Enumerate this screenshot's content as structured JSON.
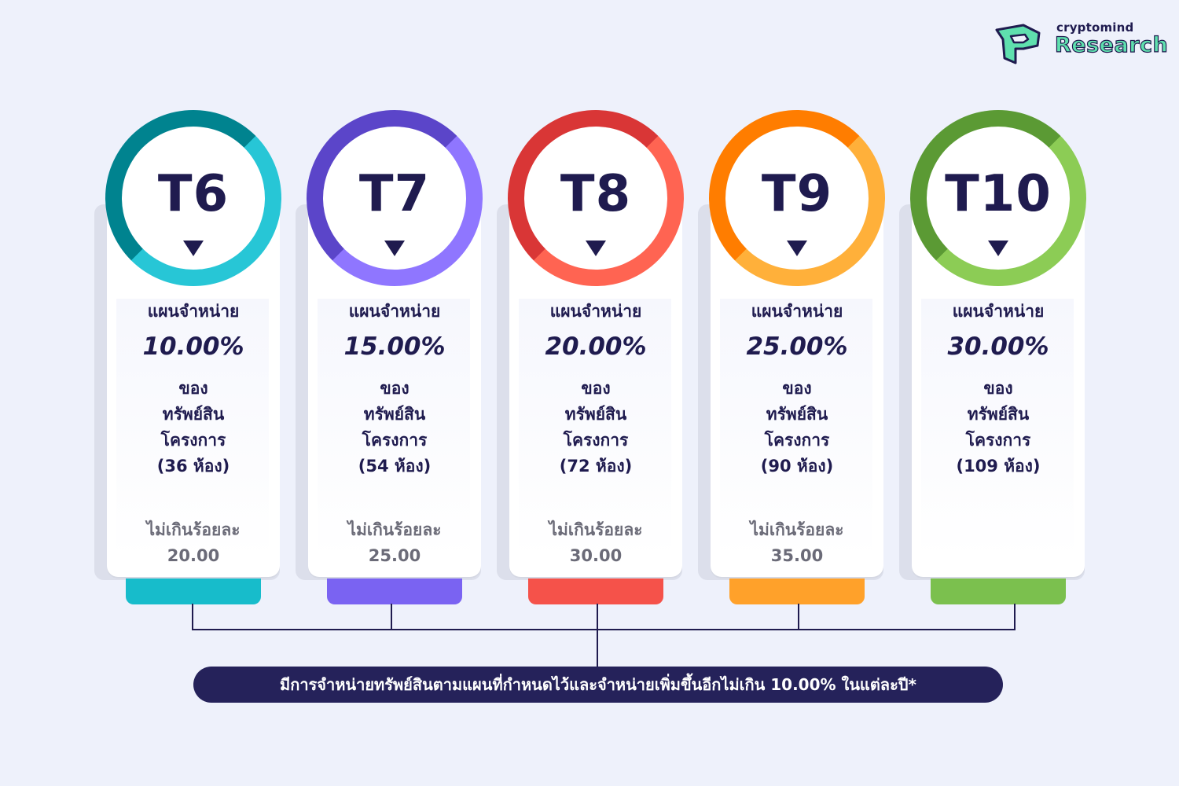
{
  "brand": {
    "small": "cryptomind",
    "big": "Research",
    "icon": "cryptomind-logo-icon"
  },
  "tiers": [
    {
      "tier": "T6",
      "plan_label": "แผนจำหน่าย",
      "percent": "10.00%",
      "line1": "ของ",
      "line2": "ทรัพย์สิน",
      "line3": "โครงการ",
      "rooms": "(36 ห้อง)",
      "limit_label": "ไม่เกินร้อยละ",
      "limit_value": "20.00",
      "color_a": "#00838f",
      "color_b": "#27c6d6",
      "tab": "#17bccb"
    },
    {
      "tier": "T7",
      "plan_label": "แผนจำหน่าย",
      "percent": "15.00%",
      "line1": "ของ",
      "line2": "ทรัพย์สิน",
      "line3": "โครงการ",
      "rooms": "(54 ห้อง)",
      "limit_label": "ไม่เกินร้อยละ",
      "limit_value": "25.00",
      "color_a": "#5b45c9",
      "color_b": "#8f76ff",
      "tab": "#7a63f2"
    },
    {
      "tier": "T8",
      "plan_label": "แผนจำหน่าย",
      "percent": "20.00%",
      "line1": "ของ",
      "line2": "ทรัพย์สิน",
      "line3": "โครงการ",
      "rooms": "(72 ห้อง)",
      "limit_label": "ไม่เกินร้อยละ",
      "limit_value": "30.00",
      "color_a": "#d93636",
      "color_b": "#ff6452",
      "tab": "#f5524a"
    },
    {
      "tier": "T9",
      "plan_label": "แผนจำหน่าย",
      "percent": "25.00%",
      "line1": "ของ",
      "line2": "ทรัพย์สิน",
      "line3": "โครงการ",
      "rooms": "(90 ห้อง)",
      "limit_label": "ไม่เกินร้อยละ",
      "limit_value": "35.00",
      "color_a": "#ff7d00",
      "color_b": "#ffb03a",
      "tab": "#ffa12a"
    },
    {
      "tier": "T10",
      "plan_label": "แผนจำหน่าย",
      "percent": "30.00%",
      "line1": "ของ",
      "line2": "ทรัพย์สิน",
      "line3": "โครงการ",
      "rooms": "(109 ห้อง)",
      "limit_label": "",
      "limit_value": "",
      "color_a": "#5b9a34",
      "color_b": "#8ccc55",
      "tab": "#7bc04e"
    }
  ],
  "footer_note": "มีการจำหน่ายทรัพย์สินตามแผนที่กำหนดไว้และจำหน่ายเพิ่มขึ้นอีกไม่เกิน 10.00% ในแต่ละปี*"
}
